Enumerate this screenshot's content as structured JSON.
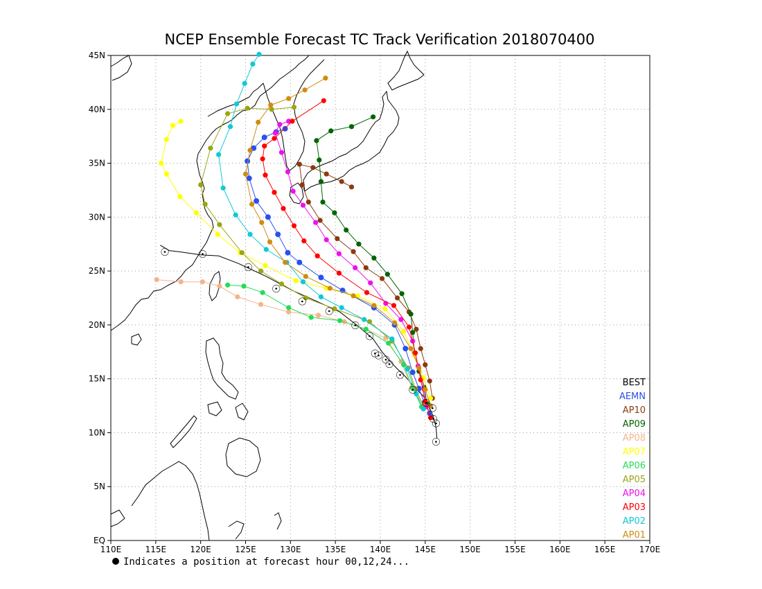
{
  "title": "NCEP Ensemble Forecast TC Track Verification 2018070400",
  "footnote": "Indicates a position at forecast hour 00,12,24...",
  "chart_data": {
    "type": "map",
    "lon_range": [
      110,
      170
    ],
    "lat_range": [
      0,
      45
    ],
    "x_ticks": [
      {
        "lon": 110,
        "label": "110E"
      },
      {
        "lon": 115,
        "label": "115E"
      },
      {
        "lon": 120,
        "label": "120E"
      },
      {
        "lon": 125,
        "label": "125E"
      },
      {
        "lon": 130,
        "label": "130E"
      },
      {
        "lon": 135,
        "label": "135E"
      },
      {
        "lon": 140,
        "label": "140E"
      },
      {
        "lon": 145,
        "label": "145E"
      },
      {
        "lon": 150,
        "label": "150E"
      },
      {
        "lon": 155,
        "label": "155E"
      },
      {
        "lon": 160,
        "label": "160E"
      },
      {
        "lon": 165,
        "label": "165E"
      },
      {
        "lon": 170,
        "label": "170E"
      }
    ],
    "y_ticks": [
      {
        "lat": 0,
        "label": "EQ"
      },
      {
        "lat": 5,
        "label": "5N"
      },
      {
        "lat": 10,
        "label": "10N"
      },
      {
        "lat": 15,
        "label": "15N"
      },
      {
        "lat": 20,
        "label": "20N"
      },
      {
        "lat": 25,
        "label": "25N"
      },
      {
        "lat": 30,
        "label": "30N"
      },
      {
        "lat": 35,
        "label": "35N"
      },
      {
        "lat": 40,
        "label": "40N"
      },
      {
        "lat": 45,
        "label": "45N"
      }
    ],
    "grid": true,
    "legend": [
      {
        "label": "BEST",
        "color": "#000000"
      },
      {
        "label": "AEMN",
        "color": "#2850f0"
      },
      {
        "label": "AP10",
        "color": "#8b3a0f"
      },
      {
        "label": "AP09",
        "color": "#006400"
      },
      {
        "label": "AP08",
        "color": "#f5b48c"
      },
      {
        "label": "AP07",
        "color": "#ffff00"
      },
      {
        "label": "AP06",
        "color": "#22dd55"
      },
      {
        "label": "AP05",
        "color": "#9aa514"
      },
      {
        "label": "AP04",
        "color": "#ee10ee"
      },
      {
        "label": "AP03",
        "color": "#ff0000"
      },
      {
        "label": "AP02",
        "color": "#10c8d8"
      },
      {
        "label": "AP01",
        "color": "#d08c10"
      }
    ],
    "series": [
      {
        "name": "BEST",
        "color": "#000000",
        "points": [
          [
            146.3,
            9.5
          ],
          [
            146.2,
            10.5
          ],
          [
            145.9,
            11.5
          ],
          [
            145.4,
            12.5
          ],
          [
            144.8,
            13.4
          ],
          [
            143.8,
            14.2
          ],
          [
            142.8,
            15.2
          ],
          [
            141.8,
            16
          ],
          [
            140.9,
            16.8
          ],
          [
            140.2,
            17.5
          ],
          [
            139.2,
            18.7
          ],
          [
            137.5,
            19.9
          ],
          [
            135.5,
            21.2
          ],
          [
            132.9,
            22.2
          ],
          [
            130.2,
            23.2
          ],
          [
            127.3,
            24.5
          ],
          [
            124.2,
            25.7
          ],
          [
            122,
            26.4
          ],
          [
            120,
            26.5
          ],
          [
            117.5,
            26.8
          ],
          [
            116.5,
            26.9
          ],
          [
            115.5,
            27.4
          ]
        ]
      },
      {
        "name": "AEMN",
        "color": "#2850f0",
        "points": [
          [
            145.5,
            11.8
          ],
          [
            144.9,
            12.8
          ],
          [
            144.3,
            14.1
          ],
          [
            143.6,
            15.6
          ],
          [
            142.8,
            17.8
          ],
          [
            141.6,
            20.0
          ],
          [
            139.3,
            21.6
          ],
          [
            135.8,
            23.2
          ],
          [
            133.4,
            24.4
          ],
          [
            131.0,
            25.8
          ],
          [
            129.7,
            26.7
          ],
          [
            128.6,
            28.4
          ],
          [
            127.5,
            30.0
          ],
          [
            126.2,
            31.5
          ],
          [
            125.4,
            33.6
          ],
          [
            125.2,
            35.2
          ],
          [
            125.9,
            36.4
          ],
          [
            127.1,
            37.4
          ],
          [
            128.4,
            37.9
          ],
          [
            129.4,
            38.2
          ]
        ]
      },
      {
        "name": "AP10",
        "color": "#8b3a0f",
        "points": [
          [
            145.8,
            13.2
          ],
          [
            145.5,
            14.8
          ],
          [
            145.0,
            16.3
          ],
          [
            144.5,
            17.8
          ],
          [
            144.0,
            19.6
          ],
          [
            143.2,
            21.2
          ],
          [
            141.9,
            22.5
          ],
          [
            140.2,
            24.3
          ],
          [
            138.4,
            25.3
          ],
          [
            137.0,
            26.8
          ],
          [
            135.2,
            28.0
          ],
          [
            133.3,
            29.7
          ],
          [
            132.0,
            31.4
          ],
          [
            131.3,
            33.0
          ],
          [
            131.0,
            34.9
          ],
          [
            132.5,
            34.6
          ],
          [
            134.0,
            34.0
          ],
          [
            135.7,
            33.3
          ],
          [
            136.8,
            32.8
          ]
        ]
      },
      {
        "name": "AP09",
        "color": "#006400",
        "points": [
          [
            145.2,
            12.7
          ],
          [
            144.9,
            14.2
          ],
          [
            144.3,
            15.7
          ],
          [
            143.8,
            17.4
          ],
          [
            143.6,
            19.3
          ],
          [
            143.4,
            21.0
          ],
          [
            142.4,
            22.9
          ],
          [
            140.8,
            24.7
          ],
          [
            139.3,
            26.2
          ],
          [
            137.6,
            27.5
          ],
          [
            136.2,
            28.8
          ],
          [
            134.9,
            30.4
          ],
          [
            133.6,
            31.4
          ],
          [
            133.4,
            33.3
          ],
          [
            133.2,
            35.3
          ],
          [
            132.9,
            37.1
          ],
          [
            134.5,
            38.0
          ],
          [
            136.8,
            38.4
          ],
          [
            139.2,
            39.3
          ]
        ]
      },
      {
        "name": "AP08",
        "color": "#f5b48c",
        "points": [
          [
            144.8,
            12.6
          ],
          [
            143.5,
            14.2
          ],
          [
            142.3,
            16.6
          ],
          [
            140.6,
            18.8
          ],
          [
            138.4,
            19.6
          ],
          [
            136.0,
            20.3
          ],
          [
            133.1,
            20.9
          ],
          [
            129.8,
            21.2
          ],
          [
            126.7,
            21.9
          ],
          [
            124.1,
            22.6
          ],
          [
            122.1,
            23.6
          ],
          [
            120.2,
            24.0
          ],
          [
            117.8,
            24.0
          ],
          [
            115.1,
            24.2
          ]
        ]
      },
      {
        "name": "AP07",
        "color": "#ffff00",
        "points": [
          [
            145.6,
            13.2
          ],
          [
            144.8,
            15.1
          ],
          [
            143.8,
            17.2
          ],
          [
            142.6,
            19.4
          ],
          [
            140.5,
            21.5
          ],
          [
            137.5,
            22.7
          ],
          [
            134.0,
            23.4
          ],
          [
            130.6,
            24.1
          ],
          [
            127.2,
            25.5
          ],
          [
            124.4,
            26.7
          ],
          [
            121.9,
            28.4
          ],
          [
            119.5,
            30.4
          ],
          [
            117.7,
            31.9
          ],
          [
            116.2,
            34.0
          ],
          [
            115.6,
            35.0
          ],
          [
            116.2,
            37.2
          ],
          [
            116.9,
            38.5
          ],
          [
            117.8,
            38.9
          ]
        ]
      },
      {
        "name": "AP06",
        "color": "#22dd55",
        "points": [
          [
            144.6,
            12.4
          ],
          [
            143.6,
            14.1
          ],
          [
            142.6,
            16.3
          ],
          [
            140.9,
            18.3
          ],
          [
            138.4,
            19.6
          ],
          [
            135.5,
            20.4
          ],
          [
            132.3,
            20.7
          ],
          [
            129.8,
            21.6
          ],
          [
            126.9,
            23.0
          ],
          [
            124.8,
            23.6
          ],
          [
            123.0,
            23.7
          ]
        ]
      },
      {
        "name": "AP05",
        "color": "#9aa514",
        "points": [
          [
            144.8,
            12.5
          ],
          [
            143.9,
            14.1
          ],
          [
            143.1,
            16.0
          ],
          [
            141.3,
            18.5
          ],
          [
            138.8,
            20.3
          ],
          [
            134.9,
            21.5
          ],
          [
            131.7,
            22.5
          ],
          [
            129.0,
            23.8
          ],
          [
            126.7,
            25.0
          ],
          [
            124.6,
            26.7
          ],
          [
            122.1,
            29.3
          ],
          [
            120.5,
            31.2
          ],
          [
            120.0,
            33.0
          ],
          [
            121.1,
            36.4
          ],
          [
            123.0,
            39.6
          ],
          [
            125.2,
            40.1
          ],
          [
            127.9,
            40.0
          ],
          [
            130.4,
            40.2
          ]
        ]
      },
      {
        "name": "AP04",
        "color": "#ee10ee",
        "points": [
          [
            145.1,
            12.4
          ],
          [
            144.9,
            14.0
          ],
          [
            144.2,
            16.2
          ],
          [
            143.6,
            18.5
          ],
          [
            142.3,
            20.5
          ],
          [
            140.6,
            22.0
          ],
          [
            138.9,
            23.9
          ],
          [
            137.2,
            25.3
          ],
          [
            135.4,
            26.6
          ],
          [
            134.0,
            27.9
          ],
          [
            132.8,
            29.5
          ],
          [
            131.4,
            31.1
          ],
          [
            130.3,
            32.4
          ],
          [
            129.7,
            34.2
          ],
          [
            129.0,
            36.0
          ],
          [
            128.3,
            37.8
          ],
          [
            128.8,
            38.6
          ],
          [
            129.8,
            38.9
          ]
        ]
      },
      {
        "name": "AP03",
        "color": "#ff0000",
        "points": [
          [
            145.6,
            11.4
          ],
          [
            145.0,
            12.9
          ],
          [
            144.5,
            14.9
          ],
          [
            143.9,
            17.4
          ],
          [
            143.2,
            19.8
          ],
          [
            141.5,
            21.8
          ],
          [
            138.5,
            23.0
          ],
          [
            135.4,
            24.8
          ],
          [
            133.0,
            26.4
          ],
          [
            131.5,
            27.8
          ],
          [
            130.4,
            29.2
          ],
          [
            129.2,
            30.8
          ],
          [
            128.2,
            32.3
          ],
          [
            127.2,
            33.9
          ],
          [
            126.9,
            35.4
          ],
          [
            127.1,
            36.6
          ],
          [
            128.2,
            37.3
          ],
          [
            130.2,
            38.9
          ],
          [
            133.7,
            40.8
          ]
        ]
      },
      {
        "name": "AP02",
        "color": "#10c8d8",
        "points": [
          [
            144.8,
            12.2
          ],
          [
            144.0,
            13.6
          ],
          [
            143.0,
            15.9
          ],
          [
            141.3,
            18.7
          ],
          [
            138.2,
            20.5
          ],
          [
            135.7,
            21.6
          ],
          [
            133.4,
            22.6
          ],
          [
            131.4,
            24.0
          ],
          [
            129.6,
            25.8
          ],
          [
            127.3,
            27.0
          ],
          [
            125.5,
            28.4
          ],
          [
            123.9,
            30.2
          ],
          [
            122.5,
            32.7
          ],
          [
            122.0,
            35.8
          ],
          [
            123.3,
            38.4
          ],
          [
            124.0,
            40.5
          ],
          [
            124.9,
            42.4
          ],
          [
            125.8,
            44.2
          ],
          [
            126.5,
            45.1
          ]
        ]
      },
      {
        "name": "AP01",
        "color": "#d08c10",
        "points": [
          [
            145.6,
            12.5
          ],
          [
            145.0,
            14.0
          ],
          [
            144.3,
            16.0
          ],
          [
            143.4,
            17.8
          ],
          [
            141.6,
            20.2
          ],
          [
            139.3,
            21.8
          ],
          [
            137.0,
            22.7
          ],
          [
            134.4,
            23.4
          ],
          [
            131.7,
            24.5
          ],
          [
            129.4,
            25.8
          ],
          [
            127.7,
            27.7
          ],
          [
            126.8,
            29.5
          ],
          [
            125.7,
            31.2
          ],
          [
            125.0,
            34.0
          ],
          [
            125.5,
            36.2
          ],
          [
            126.4,
            38.8
          ],
          [
            127.8,
            40.4
          ],
          [
            129.8,
            41.0
          ],
          [
            131.6,
            41.8
          ],
          [
            133.9,
            42.9
          ]
        ]
      }
    ],
    "storm_positions": [
      [
        146.2,
        9.2
      ],
      [
        146.2,
        10.9
      ],
      [
        145.9,
        11.3
      ],
      [
        145.8,
        12.3
      ],
      [
        145.1,
        12.8
      ],
      [
        143.6,
        14.0
      ],
      [
        142.2,
        15.4
      ],
      [
        141.0,
        16.4
      ],
      [
        140.6,
        16.8
      ],
      [
        139.8,
        17.2
      ],
      [
        139.4,
        17.4
      ],
      [
        138.8,
        19.0
      ],
      [
        137.2,
        20.0
      ],
      [
        134.3,
        21.3
      ],
      [
        131.3,
        22.2
      ],
      [
        128.4,
        23.4
      ],
      [
        125.3,
        25.4
      ],
      [
        120.2,
        26.6
      ],
      [
        116.0,
        26.8
      ]
    ]
  }
}
